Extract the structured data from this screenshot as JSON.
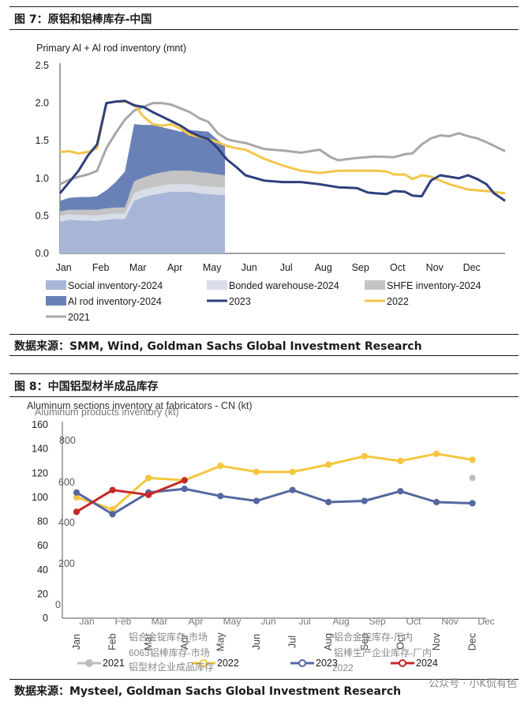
{
  "figure7": {
    "title": "图 7：原铝和铝棒库存-中国",
    "source": "数据来源：SMM, Wind, Goldman Sachs Global Investment Research"
  },
  "figure8": {
    "title": "图 8：中国铝型材半成品库存",
    "source": "数据来源：Mysteel, Goldman Sachs Global Investment Research"
  },
  "watermark": "公众号 · 小K侃有色",
  "chart_data": [
    {
      "type": "area",
      "title": "Primary Al + Al rod inventory (mnt)",
      "ylabel": "Primary Al + Al rod inventory (mnt)",
      "ylim": [
        0,
        2.5
      ],
      "yticks": [
        "0.0",
        "0.5",
        "1.0",
        "1.5",
        "2.0",
        "2.5"
      ],
      "xticks": [
        "Jan",
        "Feb",
        "Mar",
        "Apr",
        "May",
        "Jun",
        "Jul",
        "Aug",
        "Sep",
        "Oct",
        "Nov",
        "Dec"
      ],
      "stacked_2024": {
        "x": [
          0,
          0.25,
          0.5,
          0.75,
          1.0,
          1.25,
          1.5,
          1.75,
          2.0,
          2.25,
          2.5,
          2.75,
          3.0,
          3.25,
          3.5,
          3.75,
          4.0,
          4.25,
          4.45
        ],
        "series": [
          {
            "name": "Social inventory-2024",
            "color": "#a7b6d8",
            "values": [
              0.42,
              0.45,
              0.44,
              0.44,
              0.43,
              0.45,
              0.46,
              0.46,
              0.7,
              0.75,
              0.78,
              0.8,
              0.82,
              0.82,
              0.82,
              0.8,
              0.79,
              0.78,
              0.78
            ]
          },
          {
            "name": "Bonded warehouse-2024",
            "color": "#d8dde8",
            "values": [
              0.08,
              0.07,
              0.07,
              0.07,
              0.07,
              0.07,
              0.07,
              0.07,
              0.1,
              0.1,
              0.1,
              0.1,
              0.1,
              0.1,
              0.1,
              0.1,
              0.1,
              0.1,
              0.1
            ]
          },
          {
            "name": "SHFE inventory-2024",
            "color": "#c4c4c4",
            "values": [
              0.06,
              0.06,
              0.07,
              0.07,
              0.08,
              0.08,
              0.08,
              0.08,
              0.16,
              0.16,
              0.17,
              0.18,
              0.18,
              0.18,
              0.18,
              0.18,
              0.18,
              0.17,
              0.16
            ]
          },
          {
            "name": "Al rod inventory-2024",
            "color": "#6a81b8",
            "values": [
              0.14,
              0.16,
              0.17,
              0.17,
              0.18,
              0.24,
              0.34,
              0.48,
              0.76,
              0.7,
              0.66,
              0.6,
              0.55,
              0.52,
              0.54,
              0.55,
              0.55,
              0.46,
              0.4
            ]
          }
        ]
      },
      "lines": [
        {
          "name": "2023",
          "color": "#2f3f7e",
          "x": [
            0,
            0.25,
            0.5,
            0.75,
            1.0,
            1.25,
            1.5,
            1.75,
            2.0,
            2.25,
            2.5,
            2.75,
            3.0,
            3.25,
            3.5,
            3.75,
            4.0,
            4.25,
            4.5,
            4.75,
            5.0,
            5.5,
            6.0,
            6.5,
            7.0,
            7.5,
            8.0,
            8.3,
            8.5,
            8.8,
            9.0,
            9.3,
            9.5,
            9.75,
            10.0,
            10.25,
            10.5,
            10.75,
            11.0,
            11.25,
            11.5,
            11.7,
            12.0
          ],
          "values": [
            0.8,
            0.95,
            1.1,
            1.3,
            1.45,
            2.0,
            2.02,
            2.03,
            1.97,
            1.95,
            1.88,
            1.82,
            1.76,
            1.7,
            1.62,
            1.56,
            1.52,
            1.4,
            1.25,
            1.15,
            1.04,
            0.97,
            0.95,
            0.95,
            0.92,
            0.88,
            0.87,
            0.81,
            0.8,
            0.79,
            0.83,
            0.82,
            0.77,
            0.76,
            0.97,
            1.04,
            1.02,
            1.0,
            1.04,
            0.99,
            0.92,
            0.8,
            0.7
          ]
        },
        {
          "name": "2022",
          "color": "#f3c64c",
          "x": [
            0,
            0.25,
            0.5,
            0.75,
            1.0,
            1.25,
            1.5,
            1.75,
            2.0,
            2.25,
            2.5,
            2.75,
            3.0,
            3.25,
            3.5,
            3.75,
            4.0,
            4.25,
            4.5,
            4.75,
            5.0,
            5.5,
            6.0,
            6.5,
            7.0,
            7.5,
            8.0,
            8.3,
            8.5,
            8.8,
            9.0,
            9.3,
            9.5,
            9.75,
            10.0,
            10.5,
            11.0,
            11.5,
            12.0
          ],
          "values": [
            1.35,
            1.36,
            1.33,
            1.35,
            1.4,
            2.0,
            2.02,
            2.02,
            1.98,
            1.82,
            1.72,
            1.7,
            1.72,
            1.66,
            1.58,
            1.55,
            1.52,
            1.48,
            1.43,
            1.4,
            1.38,
            1.26,
            1.17,
            1.1,
            1.07,
            1.1,
            1.1,
            1.1,
            1.1,
            1.09,
            1.05,
            1.05,
            0.99,
            1.04,
            1.02,
            0.92,
            0.85,
            0.83,
            0.8
          ]
        },
        {
          "name": "2021",
          "color": "#a8a8a8",
          "x": [
            0,
            0.25,
            0.5,
            0.75,
            1.0,
            1.25,
            1.5,
            1.75,
            2.0,
            2.25,
            2.5,
            2.75,
            3.0,
            3.25,
            3.5,
            3.75,
            4.0,
            4.25,
            4.5,
            4.75,
            5.0,
            5.5,
            6.0,
            6.5,
            7.0,
            7.3,
            7.5,
            8.0,
            8.5,
            9.0,
            9.3,
            9.5,
            9.75,
            10.0,
            10.25,
            10.5,
            10.75,
            11.0,
            11.25,
            11.5,
            12.0
          ],
          "values": [
            0.92,
            0.98,
            1.02,
            1.05,
            1.1,
            1.4,
            1.6,
            1.78,
            1.9,
            1.95,
            2.0,
            2.0,
            1.98,
            1.93,
            1.88,
            1.8,
            1.75,
            1.6,
            1.52,
            1.49,
            1.47,
            1.39,
            1.37,
            1.34,
            1.38,
            1.28,
            1.24,
            1.27,
            1.29,
            1.28,
            1.32,
            1.33,
            1.45,
            1.53,
            1.57,
            1.56,
            1.6,
            1.56,
            1.53,
            1.48,
            1.36
          ]
        }
      ],
      "legend": [
        "Social inventory-2024",
        "Bonded warehouse-2024",
        "SHFE inventory-2024",
        "Al rod inventory-2024",
        "2023",
        "2022",
        "2021"
      ]
    },
    {
      "type": "line",
      "title": "Aluminum sections inventory at fabricators - CN (kt)",
      "overlay_title": "Aluminum products inventory (kt)",
      "ylim": [
        0,
        160
      ],
      "yticks": [
        "0",
        "20",
        "40",
        "60",
        "80",
        "100",
        "120",
        "140",
        "160"
      ],
      "ghost_yticks": [
        "800",
        "600",
        "400",
        "200",
        "0"
      ],
      "xticks": [
        "Jan",
        "Feb",
        "Mar",
        "Apr",
        "May",
        "Jun",
        "Jul",
        "Aug",
        "Sep",
        "Oct",
        "Nov",
        "Dec"
      ],
      "ghost_xticks": [
        "Jan",
        "Feb",
        "Mar",
        "Apr",
        "May",
        "Jun",
        "Jul",
        "Aug",
        "Sep",
        "Oct",
        "Nov",
        "Dec"
      ],
      "series": [
        {
          "name": "2021",
          "color": "#bdbdbd",
          "values": [
            null,
            null,
            null,
            null,
            null,
            null,
            null,
            null,
            null,
            null,
            null,
            116
          ]
        },
        {
          "name": "2022",
          "color": "#f5c63d",
          "values": [
            100,
            90,
            116,
            114,
            126,
            121,
            121,
            127,
            134,
            130,
            136,
            131
          ]
        },
        {
          "name": "2023",
          "color": "#55679f",
          "values": [
            104,
            86,
            104,
            107,
            101,
            97,
            106,
            96,
            97,
            105,
            96,
            95
          ]
        },
        {
          "name": "2024",
          "color": "#c62828",
          "values": [
            88,
            106,
            102,
            114,
            null,
            null,
            null,
            null,
            null,
            null,
            null,
            null
          ]
        }
      ],
      "ghost_legend": [
        "铝合金锭库存-市场",
        "铝合金锭库存-厂内",
        "6063铝棒库存-市场",
        "铝棒生产企业库存-厂内",
        "铝型材企业成品库存",
        "2022"
      ]
    }
  ]
}
